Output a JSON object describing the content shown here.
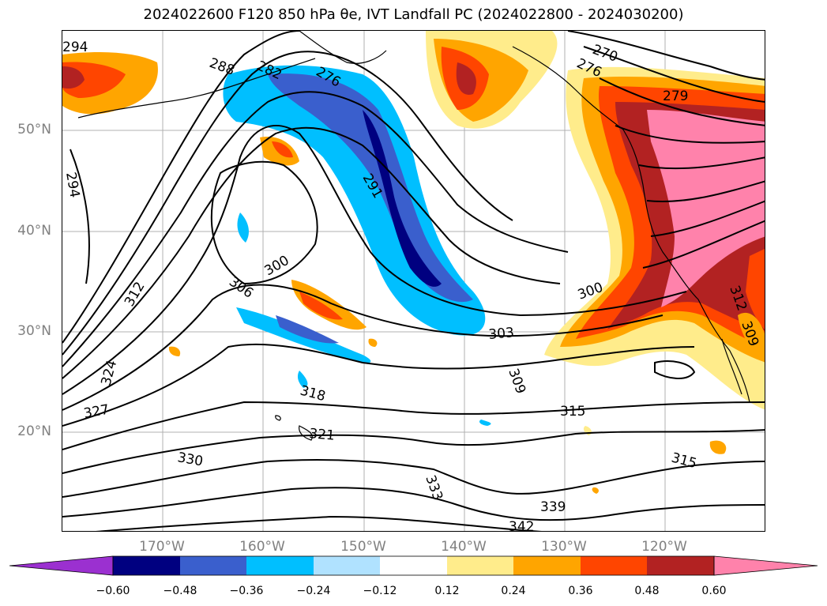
{
  "title": {
    "text": "2024022600 F120 850 hPa θe, IVT Landfall PC (2024022800 - 2024030200)"
  },
  "latitude_labels": [
    "50°N",
    "40°N",
    "30°N",
    "20°N"
  ],
  "longitude_labels": [
    "170°W",
    "160°W",
    "150°W",
    "140°W",
    "130°W",
    "120°W"
  ],
  "contour_labels": [
    "294",
    "288",
    "282",
    "276",
    "270",
    "276",
    "279",
    "294",
    "291",
    "300",
    "306",
    "312",
    "300",
    "303",
    "309",
    "315",
    "318",
    "321",
    "324",
    "327",
    "330",
    "333",
    "339",
    "342",
    "315",
    "312",
    "309"
  ],
  "colorbar": {
    "ticks": [
      "−0.60",
      "−0.48",
      "−0.36",
      "−0.24",
      "−0.12",
      "0.12",
      "0.24",
      "0.36",
      "0.48",
      "0.60"
    ],
    "colors": [
      "#9b30d0",
      "#000080",
      "#3a5fcd",
      "#00bfff",
      "#b0e2ff",
      "#ffffff",
      "#ffec8b",
      "#ffa500",
      "#ff4500",
      "#b22222",
      "#ff82ab"
    ]
  }
}
